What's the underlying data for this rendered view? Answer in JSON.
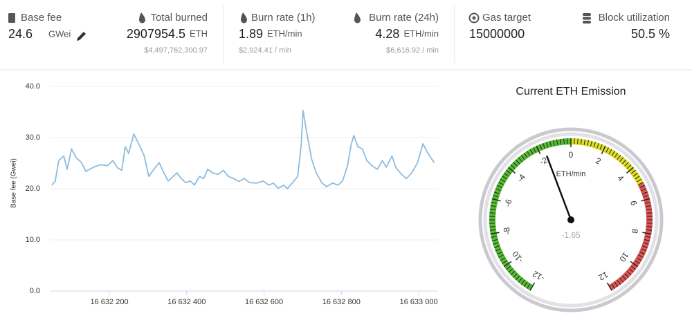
{
  "stats": [
    {
      "label": "Base fee",
      "value": "24.6",
      "unit": "GWei"
    },
    {
      "label": "Total burned",
      "value": "2907954.5",
      "unit": "ETH",
      "sub": "$4,497,762,300.97"
    },
    {
      "label": "Burn rate (1h)",
      "value": "1.89",
      "unit": "ETH/min",
      "sub": "$2,924.41 / min"
    },
    {
      "label": "Burn rate (24h)",
      "value": "4.28",
      "unit": "ETH/min",
      "sub": "$6,616.92 / min"
    },
    {
      "label": "Gas target",
      "value": "15000000"
    },
    {
      "label": "Block utilization",
      "value": "50.5 %"
    }
  ],
  "chart_data": [
    {
      "type": "line",
      "y_label": "Base fee (Gwei)",
      "color": "#8bbcdf",
      "grid": true,
      "xlim": [
        16632046,
        16633050
      ],
      "xticks": [
        {
          "value": 16632200,
          "label": "16 632 200"
        },
        {
          "value": 16632400,
          "label": "16 632 400"
        },
        {
          "value": 16632600,
          "label": "16 632 600"
        },
        {
          "value": 16632800,
          "label": "16 632 800"
        },
        {
          "value": 16633000,
          "label": "16 633 000"
        }
      ],
      "ylim": [
        0,
        40
      ],
      "yticks": [
        {
          "value": 0,
          "label": "0.0"
        },
        {
          "value": 10,
          "label": "10.0"
        },
        {
          "value": 20,
          "label": "20.0"
        },
        {
          "value": 30,
          "label": "30.0"
        },
        {
          "value": 40,
          "label": "40.0"
        }
      ],
      "x": [
        16632051,
        16632060,
        16632069,
        16632082,
        16632091,
        16632102,
        16632114,
        16632128,
        16632139,
        16632159,
        16632177,
        16632195,
        16632209,
        16632221,
        16632232,
        16632241,
        16632250,
        16632263,
        16632275,
        16632290,
        16632302,
        16632315,
        16632329,
        16632341,
        16632352,
        16632365,
        16632375,
        16632386,
        16632397,
        16632410,
        16632420,
        16632433,
        16632444,
        16632454,
        16632467,
        16632481,
        16632495,
        16632508,
        16632521,
        16632535,
        16632549,
        16632562,
        16632580,
        16632598,
        16632612,
        16632624,
        16632637,
        16632651,
        16632660,
        16632673,
        16632687,
        16632696,
        16632701,
        16632710,
        16632723,
        16632735,
        16632750,
        16632762,
        16632777,
        16632791,
        16632803,
        16632816,
        16632825,
        16632832,
        16632843,
        16632854,
        16632866,
        16632879,
        16632893,
        16632906,
        16632916,
        16632931,
        16632941,
        16632956,
        16632968,
        16632982,
        16632997,
        16633011,
        16633024,
        16633040
      ],
      "values": [
        20.7,
        21.5,
        25.5,
        26.4,
        23.8,
        27.8,
        26.1,
        25.1,
        23.4,
        24.2,
        24.7,
        24.5,
        25.5,
        24.1,
        23.6,
        28.2,
        26.9,
        30.7,
        28.9,
        26.5,
        22.4,
        23.8,
        25.1,
        23.1,
        21.5,
        22.4,
        23.1,
        22.0,
        21.2,
        21.5,
        20.7,
        22.4,
        22.0,
        23.8,
        23.1,
        22.8,
        23.6,
        22.4,
        22.0,
        21.4,
        22.0,
        21.2,
        21.1,
        21.5,
        20.7,
        21.1,
        20.1,
        20.7,
        20.0,
        21.1,
        22.4,
        28.5,
        35.3,
        31.2,
        25.8,
        23.1,
        21.1,
        20.4,
        21.1,
        20.7,
        21.5,
        24.5,
        28.5,
        30.4,
        28.2,
        27.8,
        25.5,
        24.5,
        23.8,
        25.5,
        24.2,
        26.4,
        24.1,
        22.8,
        22.0,
        23.1,
        25.1,
        28.8,
        26.9,
        25.1
      ]
    },
    {
      "type": "gauge",
      "title": "Current ETH Emission",
      "unit": "ETH/min",
      "value": -1.65,
      "lim": [
        -12,
        12
      ],
      "ticks": [
        -12,
        -10,
        -8,
        -6,
        -4,
        -2,
        0,
        2,
        4,
        6,
        8,
        10,
        12
      ],
      "bands": [
        {
          "from": -12,
          "to": 0,
          "color": "#55bb33"
        },
        {
          "from": 0,
          "to": 5,
          "color": "#dddd22"
        },
        {
          "from": 5,
          "to": 12,
          "color": "#dd5555"
        }
      ]
    }
  ]
}
